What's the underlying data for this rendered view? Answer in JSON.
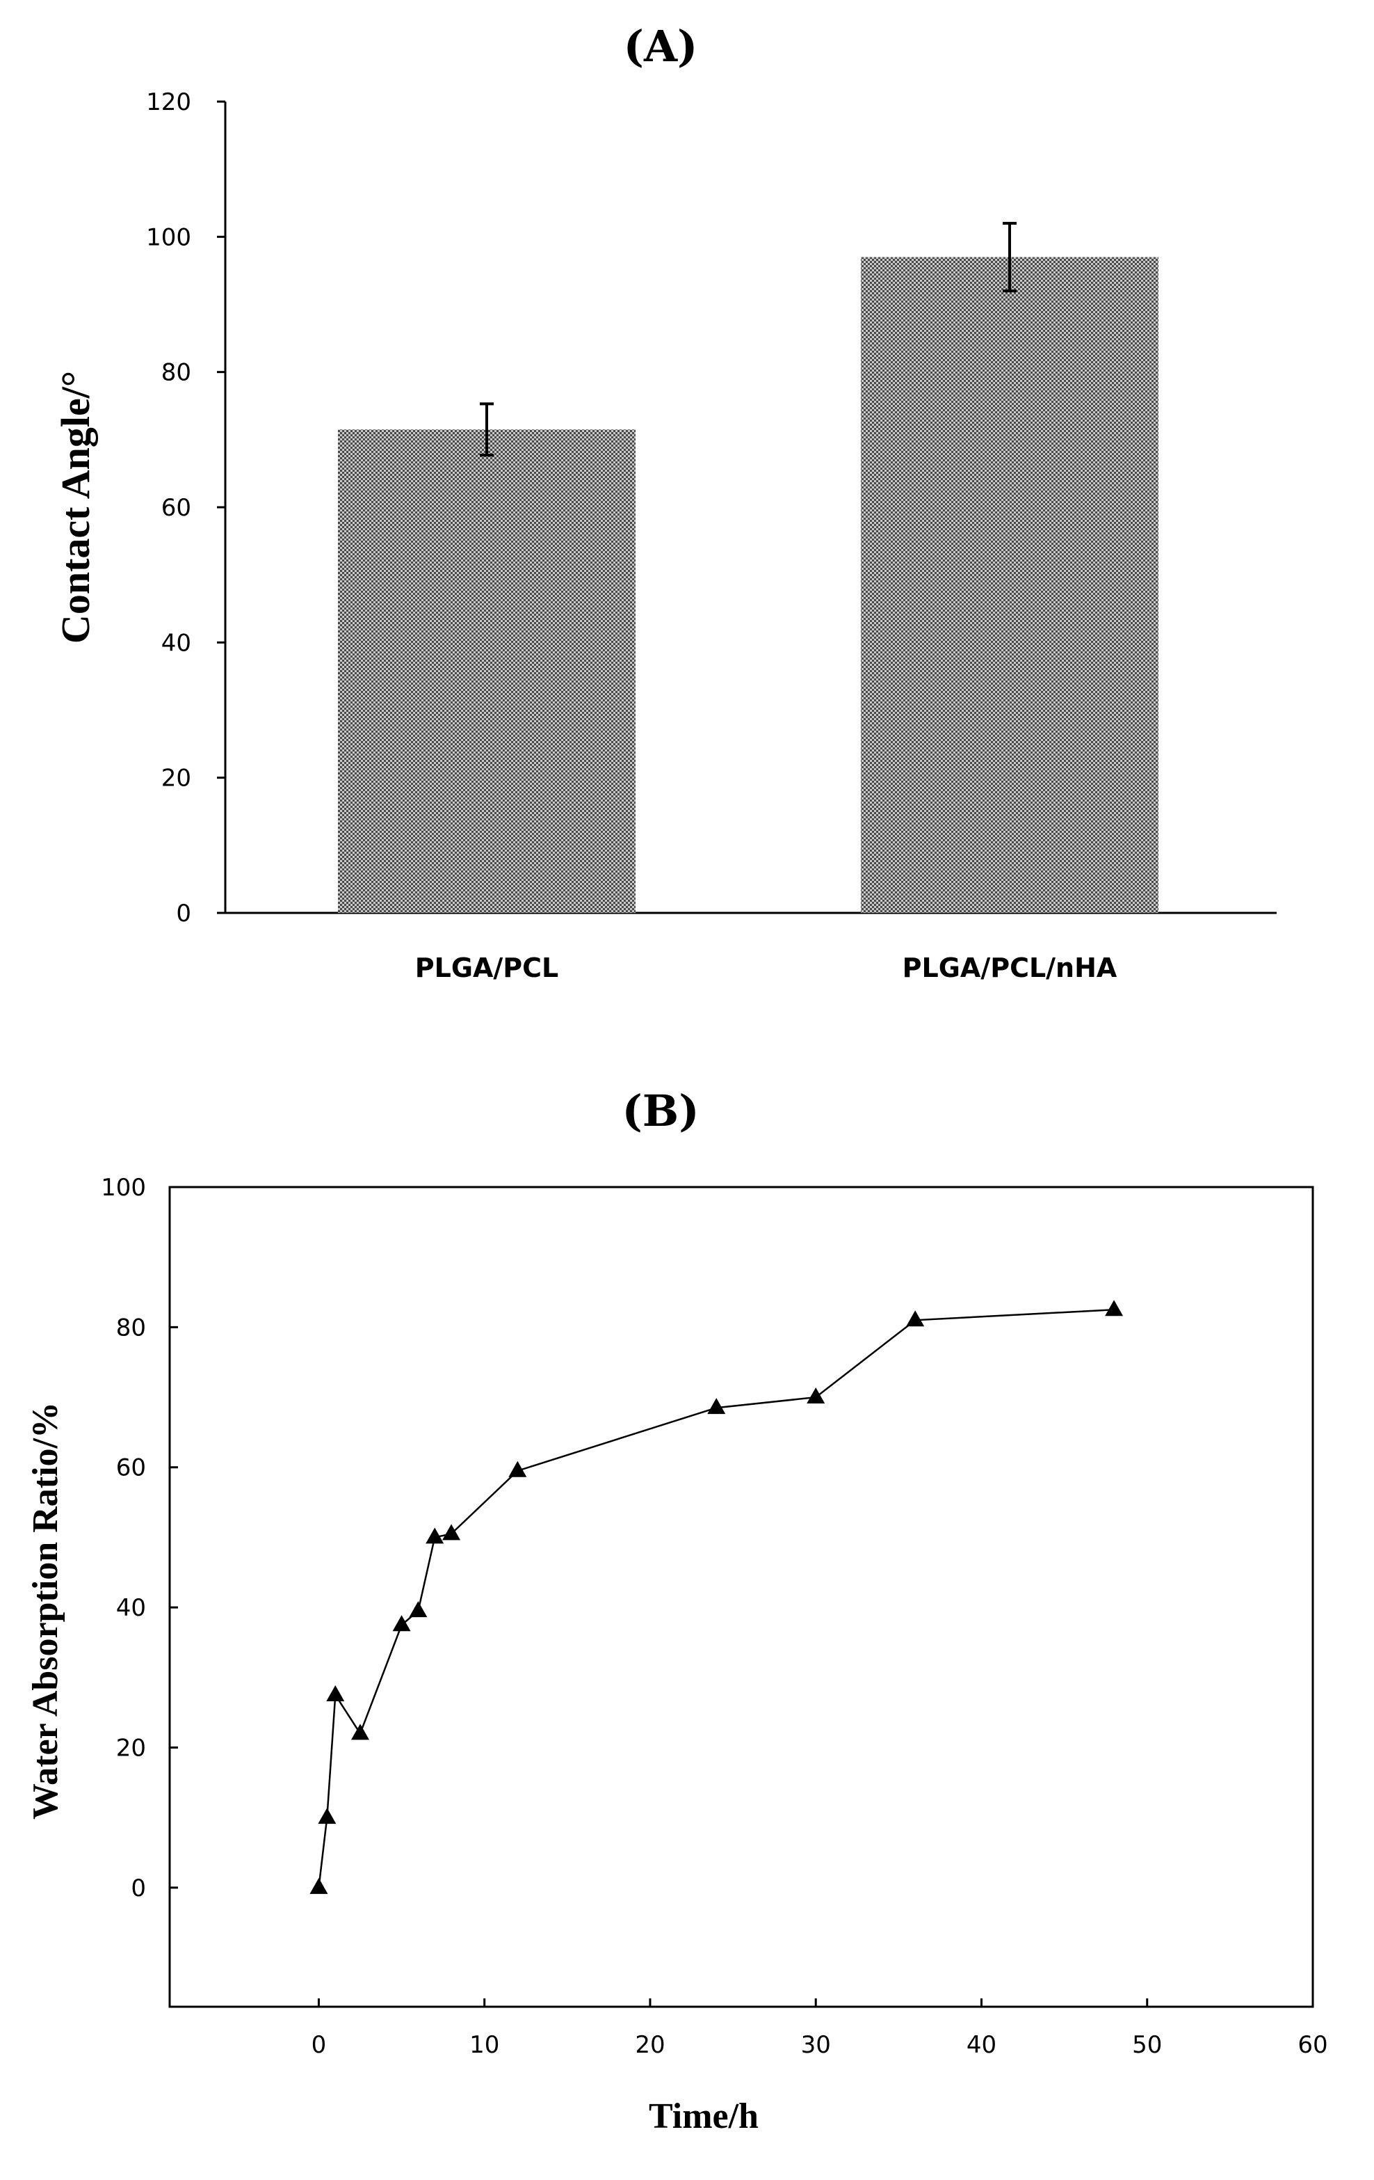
{
  "chart_data": [
    {
      "type": "bar",
      "panel": "(A)",
      "categories": [
        "PLGA/PCL",
        "PLGA/PCL/nHA"
      ],
      "values": [
        71.5,
        97
      ],
      "errors": [
        3.8,
        5.0
      ],
      "xlabel": "",
      "ylabel": "Contact Angle/°",
      "ylim": [
        0,
        120
      ],
      "yticks": [
        0,
        20,
        40,
        60,
        80,
        100,
        120
      ],
      "fill_color": "#8a8a8a",
      "grid": false
    },
    {
      "type": "line",
      "panel": "(B)",
      "series": [
        {
          "name": "Water Absorption Ratio",
          "marker": "triangle",
          "x": [
            0,
            0.5,
            1,
            2.5,
            5,
            6,
            7,
            8,
            12,
            24,
            30,
            36,
            48
          ],
          "y": [
            0,
            10,
            27.5,
            22,
            37.5,
            39.5,
            50,
            50.5,
            59.5,
            68.5,
            70,
            81,
            82.5
          ]
        }
      ],
      "xlabel": "Time/h",
      "ylabel": "Water Absorption Ratio/%",
      "xlim": [
        -9,
        60
      ],
      "ylim": [
        -17,
        100
      ],
      "xticks": [
        0,
        10,
        20,
        30,
        40,
        50,
        60
      ],
      "yticks": [
        0,
        20,
        40,
        60,
        80,
        100
      ],
      "grid": false
    }
  ]
}
